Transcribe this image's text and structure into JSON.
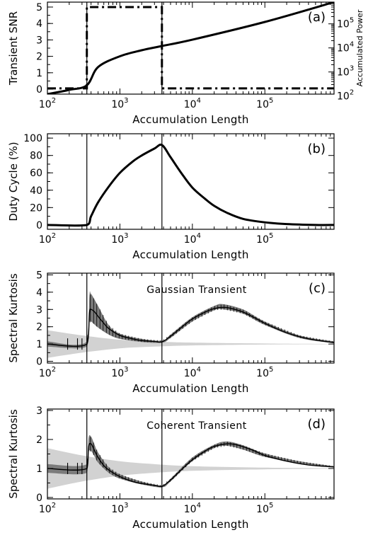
{
  "chart_data": [
    {
      "panel": "a",
      "type": "line",
      "panel_tag": "(a)",
      "xlabel": "Accumulation Length",
      "ylabel": "Transient SNR",
      "y2label": "Accumulated Power",
      "xscale": "log",
      "xlim": [
        100,
        900000
      ],
      "ylim": [
        -0.3,
        5.3
      ],
      "xticks": [
        {
          "value": 100,
          "base": "10",
          "exp": "2"
        },
        {
          "value": 1000,
          "base": "10",
          "exp": "3"
        },
        {
          "value": 10000,
          "base": "10",
          "exp": "4"
        },
        {
          "value": 100000,
          "base": "10",
          "exp": "5"
        }
      ],
      "yticks": [
        "0",
        "1",
        "2",
        "3",
        "4",
        "5"
      ],
      "y2scale": "log",
      "y2lim": [
        120,
        800000
      ],
      "y2ticks": [
        {
          "value": 100,
          "base": "10",
          "exp": "2"
        },
        {
          "value": 1000,
          "base": "10",
          "exp": "3"
        },
        {
          "value": 10000,
          "base": "10",
          "exp": "4"
        },
        {
          "value": 100000,
          "base": "10",
          "exp": "5"
        }
      ],
      "vlines": [
        350,
        3800
      ],
      "series": [
        {
          "style": "dash-dot",
          "axis": "left",
          "x": [
            100,
            350,
            350,
            3800,
            3800,
            900000
          ],
          "y": [
            0.05,
            0.05,
            5,
            5,
            0.05,
            0.05
          ]
        },
        {
          "style": "solid",
          "axis": "right",
          "x": [
            100,
            200,
            350,
            500,
            1000,
            2000,
            3800,
            10000,
            100000,
            900000
          ],
          "y": [
            120,
            180,
            280,
            1600,
            4500,
            8000,
            12000,
            22000,
            120000,
            800000
          ]
        }
      ]
    },
    {
      "panel": "b",
      "type": "line",
      "panel_tag": "(b)",
      "xlabel": "Accumulation Length",
      "ylabel": "Duty Cycle (%)",
      "xscale": "log",
      "xlim": [
        100,
        900000
      ],
      "ylim": [
        -5,
        105
      ],
      "xticks": [
        {
          "value": 100,
          "base": "10",
          "exp": "2"
        },
        {
          "value": 1000,
          "base": "10",
          "exp": "3"
        },
        {
          "value": 10000,
          "base": "10",
          "exp": "4"
        },
        {
          "value": 100000,
          "base": "10",
          "exp": "5"
        }
      ],
      "yticks": [
        "0",
        "20",
        "40",
        "60",
        "80",
        "100"
      ],
      "vlines": [
        350,
        3800
      ],
      "series": [
        {
          "style": "solid",
          "x": [
            100,
            350,
            400,
            500,
            700,
            1000,
            1500,
            2000,
            3000,
            3800,
            5000,
            7000,
            10000,
            15000,
            20000,
            30000,
            50000,
            100000,
            200000,
            500000,
            900000
          ],
          "y": [
            0,
            0,
            10,
            26,
            44,
            60,
            73,
            80,
            88,
            92,
            78,
            60,
            43,
            30,
            22,
            14,
            7,
            3,
            1,
            0,
            0
          ]
        }
      ]
    },
    {
      "panel": "c",
      "type": "line",
      "panel_tag": "(c)",
      "annotation": "Gaussian Transient",
      "xlabel": "Accumulation Length",
      "ylabel": "Spectral Kurtosis",
      "xscale": "log",
      "xlim": [
        100,
        900000
      ],
      "ylim": [
        -0.1,
        5.1
      ],
      "xticks": [
        {
          "value": 100,
          "base": "10",
          "exp": "2"
        },
        {
          "value": 1000,
          "base": "10",
          "exp": "3"
        },
        {
          "value": 10000,
          "base": "10",
          "exp": "4"
        },
        {
          "value": 100000,
          "base": "10",
          "exp": "5"
        }
      ],
      "yticks": [
        "0",
        "1",
        "2",
        "3",
        "4",
        "5"
      ],
      "vlines": [
        350,
        3800
      ],
      "band_light": {
        "x": [
          100,
          300,
          1000,
          3000,
          10000,
          100000,
          900000
        ],
        "lo": [
          0.2,
          0.5,
          0.75,
          0.85,
          0.92,
          0.97,
          0.99
        ],
        "hi": [
          1.8,
          1.5,
          1.25,
          1.15,
          1.08,
          1.03,
          1.01
        ]
      },
      "band_dark": {
        "x": [
          100,
          350,
          380,
          400,
          500,
          700,
          1000,
          2000,
          3800,
          5000,
          10000,
          20000,
          27000,
          50000,
          100000,
          300000,
          900000
        ],
        "lo": [
          0.85,
          0.85,
          2.2,
          2.3,
          1.95,
          1.55,
          1.3,
          1.12,
          1.08,
          1.35,
          2.3,
          2.95,
          3.0,
          2.75,
          2.1,
          1.35,
          1.05
        ],
        "hi": [
          1.15,
          1.15,
          3.8,
          3.9,
          3.2,
          2.1,
          1.6,
          1.3,
          1.2,
          1.55,
          2.55,
          3.2,
          3.3,
          3.0,
          2.3,
          1.5,
          1.15
        ]
      },
      "series": [
        {
          "style": "solid",
          "x": [
            100,
            350,
            380,
            400,
            450,
            500,
            600,
            700,
            1000,
            1500,
            2000,
            3000,
            3800,
            5000,
            7000,
            10000,
            15000,
            20000,
            27000,
            35000,
            50000,
            70000,
            100000,
            200000,
            400000,
            900000
          ],
          "y": [
            1.0,
            1.0,
            2.8,
            3.0,
            2.85,
            2.6,
            2.2,
            1.9,
            1.5,
            1.3,
            1.2,
            1.15,
            1.12,
            1.45,
            1.95,
            2.45,
            2.85,
            3.05,
            3.12,
            3.05,
            2.85,
            2.55,
            2.2,
            1.65,
            1.3,
            1.08
          ]
        }
      ]
    },
    {
      "panel": "d",
      "type": "line",
      "panel_tag": "(d)",
      "annotation": "Coherent Transient",
      "xlabel": "Accumulation Length",
      "ylabel": "Spectral Kurtosis",
      "xscale": "log",
      "xlim": [
        100,
        900000
      ],
      "ylim": [
        -0.05,
        3.05
      ],
      "xticks": [
        {
          "value": 100,
          "base": "10",
          "exp": "2"
        },
        {
          "value": 1000,
          "base": "10",
          "exp": "3"
        },
        {
          "value": 10000,
          "base": "10",
          "exp": "4"
        },
        {
          "value": 100000,
          "base": "10",
          "exp": "5"
        }
      ],
      "yticks": [
        "0",
        "1",
        "2",
        "3"
      ],
      "vlines": [
        350,
        3800
      ],
      "band_light": {
        "x": [
          100,
          300,
          1000,
          3000,
          10000,
          100000,
          900000
        ],
        "lo": [
          0.3,
          0.55,
          0.75,
          0.85,
          0.92,
          0.97,
          0.99
        ],
        "hi": [
          1.7,
          1.45,
          1.25,
          1.15,
          1.08,
          1.03,
          1.01
        ]
      },
      "band_dark": {
        "x": [
          100,
          350,
          370,
          400,
          450,
          500,
          700,
          1000,
          2000,
          3800,
          5000,
          10000,
          20000,
          30000,
          50000,
          100000,
          300000,
          900000
        ],
        "lo": [
          0.85,
          0.85,
          1.55,
          1.6,
          1.4,
          1.2,
          0.85,
          0.65,
          0.45,
          0.35,
          0.55,
          1.25,
          1.7,
          1.78,
          1.65,
          1.4,
          1.18,
          1.04
        ],
        "hi": [
          1.15,
          1.15,
          2.05,
          2.1,
          1.8,
          1.55,
          1.05,
          0.8,
          0.55,
          0.42,
          0.65,
          1.38,
          1.82,
          1.93,
          1.8,
          1.52,
          1.25,
          1.08
        ]
      },
      "series": [
        {
          "style": "solid",
          "x": [
            100,
            350,
            370,
            400,
            450,
            500,
            600,
            700,
            1000,
            1500,
            2000,
            3000,
            3800,
            5000,
            7000,
            10000,
            15000,
            20000,
            30000,
            40000,
            50000,
            70000,
            100000,
            200000,
            400000,
            900000
          ],
          "y": [
            1.0,
            1.0,
            1.75,
            1.85,
            1.6,
            1.38,
            1.1,
            0.95,
            0.72,
            0.55,
            0.48,
            0.42,
            0.38,
            0.6,
            0.95,
            1.3,
            1.6,
            1.76,
            1.85,
            1.82,
            1.75,
            1.62,
            1.45,
            1.25,
            1.12,
            1.05
          ]
        }
      ]
    }
  ]
}
